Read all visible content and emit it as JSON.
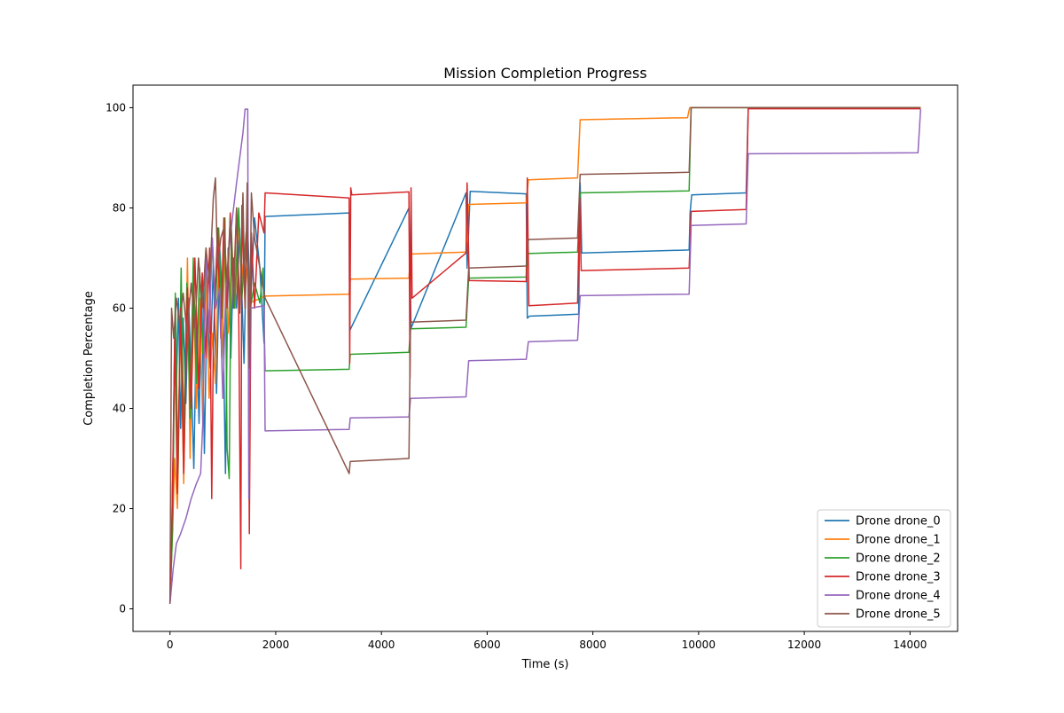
{
  "chart_data": {
    "type": "line",
    "title": "Mission Completion Progress",
    "xlabel": "Time (s)",
    "ylabel": "Completion Percentage",
    "xlim": [
      -700,
      14900
    ],
    "ylim": [
      -4.5,
      104.5
    ],
    "xticks": [
      0,
      2000,
      4000,
      6000,
      8000,
      10000,
      12000,
      14000
    ],
    "yticks": [
      0,
      20,
      40,
      60,
      80,
      100
    ],
    "grid": false,
    "legend_position": "lower-right",
    "series": [
      {
        "name": "Drone drone_0",
        "color": "#1f77b4",
        "points": [
          [
            0,
            1
          ],
          [
            30,
            14
          ],
          [
            60,
            31
          ],
          [
            90,
            56
          ],
          [
            120,
            44
          ],
          [
            160,
            62
          ],
          [
            200,
            36
          ],
          [
            250,
            58
          ],
          [
            300,
            41
          ],
          [
            350,
            62
          ],
          [
            400,
            47
          ],
          [
            450,
            28
          ],
          [
            500,
            57
          ],
          [
            550,
            37
          ],
          [
            600,
            64
          ],
          [
            650,
            31
          ],
          [
            700,
            62
          ],
          [
            760,
            48
          ],
          [
            820,
            69
          ],
          [
            880,
            43
          ],
          [
            940,
            72
          ],
          [
            1000,
            60
          ],
          [
            1050,
            27
          ],
          [
            1100,
            72
          ],
          [
            1150,
            50
          ],
          [
            1200,
            70
          ],
          [
            1260,
            60
          ],
          [
            1320,
            76
          ],
          [
            1400,
            49
          ],
          [
            1460,
            79
          ],
          [
            1520,
            60
          ],
          [
            1600,
            78
          ],
          [
            1700,
            68
          ],
          [
            1780,
            53
          ],
          [
            1800,
            78.3
          ],
          [
            3390,
            79
          ],
          [
            3400,
            55.5
          ],
          [
            4520,
            80
          ],
          [
            4560,
            56
          ],
          [
            5600,
            83
          ],
          [
            5620,
            68
          ],
          [
            5680,
            83.3
          ],
          [
            6740,
            82.8
          ],
          [
            6760,
            58
          ],
          [
            6800,
            58.4
          ],
          [
            7730,
            58.8
          ],
          [
            7760,
            85
          ],
          [
            7790,
            71
          ],
          [
            9820,
            71.6
          ],
          [
            9840,
            79
          ],
          [
            9870,
            82.6
          ],
          [
            10900,
            83
          ],
          [
            10940,
            100
          ],
          [
            14200,
            100
          ]
        ]
      },
      {
        "name": "Drone drone_1",
        "color": "#ff7f0e",
        "points": [
          [
            0,
            1
          ],
          [
            40,
            13
          ],
          [
            90,
            30
          ],
          [
            140,
            20
          ],
          [
            200,
            58
          ],
          [
            260,
            25
          ],
          [
            330,
            70
          ],
          [
            380,
            30
          ],
          [
            440,
            65
          ],
          [
            500,
            40
          ],
          [
            560,
            62
          ],
          [
            620,
            37
          ],
          [
            680,
            68
          ],
          [
            740,
            42
          ],
          [
            800,
            55
          ],
          [
            860,
            45
          ],
          [
            920,
            70
          ],
          [
            980,
            50
          ],
          [
            1040,
            74
          ],
          [
            1100,
            55
          ],
          [
            1160,
            69
          ],
          [
            1230,
            60
          ],
          [
            1300,
            77
          ],
          [
            1360,
            66
          ],
          [
            1420,
            72
          ],
          [
            1500,
            61
          ],
          [
            1800,
            62.4
          ],
          [
            3390,
            62.8
          ],
          [
            3410,
            65.8
          ],
          [
            4520,
            66
          ],
          [
            4550,
            70.8
          ],
          [
            5600,
            71.2
          ],
          [
            5650,
            80.7
          ],
          [
            6740,
            81
          ],
          [
            6780,
            85.6
          ],
          [
            7710,
            86
          ],
          [
            7760,
            97.6
          ],
          [
            9790,
            98
          ],
          [
            9830,
            100
          ],
          [
            14200,
            100
          ]
        ]
      },
      {
        "name": "Drone drone_2",
        "color": "#2ca02c",
        "points": [
          [
            0,
            1
          ],
          [
            50,
            16
          ],
          [
            100,
            63
          ],
          [
            150,
            27
          ],
          [
            210,
            68
          ],
          [
            260,
            34
          ],
          [
            320,
            65
          ],
          [
            380,
            38
          ],
          [
            440,
            70
          ],
          [
            500,
            45
          ],
          [
            560,
            68
          ],
          [
            620,
            51
          ],
          [
            680,
            72
          ],
          [
            740,
            55
          ],
          [
            800,
            74
          ],
          [
            860,
            60
          ],
          [
            920,
            76
          ],
          [
            980,
            58
          ],
          [
            1040,
            78
          ],
          [
            1080,
            32
          ],
          [
            1120,
            26
          ],
          [
            1160,
            76
          ],
          [
            1220,
            60
          ],
          [
            1300,
            80
          ],
          [
            1360,
            62
          ],
          [
            1440,
            75
          ],
          [
            1520,
            60
          ],
          [
            1600,
            65
          ],
          [
            1700,
            61
          ],
          [
            1760,
            68
          ],
          [
            1800,
            47.5
          ],
          [
            3390,
            47.8
          ],
          [
            3410,
            50.8
          ],
          [
            4520,
            51.2
          ],
          [
            4550,
            55.9
          ],
          [
            5600,
            56.2
          ],
          [
            5650,
            66
          ],
          [
            6740,
            66.2
          ],
          [
            6780,
            70.9
          ],
          [
            7710,
            71.2
          ],
          [
            7760,
            83
          ],
          [
            9820,
            83.4
          ],
          [
            9860,
            100
          ],
          [
            14200,
            100
          ]
        ]
      },
      {
        "name": "Drone drone_3",
        "color": "#d62728",
        "points": [
          [
            0,
            1
          ],
          [
            40,
            19
          ],
          [
            90,
            54
          ],
          [
            140,
            23
          ],
          [
            200,
            60
          ],
          [
            260,
            27
          ],
          [
            330,
            64
          ],
          [
            400,
            40
          ],
          [
            470,
            70
          ],
          [
            540,
            44
          ],
          [
            610,
            67
          ],
          [
            680,
            50
          ],
          [
            750,
            72
          ],
          [
            790,
            22
          ],
          [
            820,
            53
          ],
          [
            900,
            76
          ],
          [
            960,
            54
          ],
          [
            1020,
            78
          ],
          [
            1080,
            60
          ],
          [
            1140,
            79
          ],
          [
            1200,
            63
          ],
          [
            1260,
            80
          ],
          [
            1300,
            60
          ],
          [
            1340,
            8
          ],
          [
            1360,
            80.5
          ],
          [
            1420,
            60
          ],
          [
            1470,
            80
          ],
          [
            1500,
            15
          ],
          [
            1540,
            75
          ],
          [
            1600,
            60
          ],
          [
            1680,
            79
          ],
          [
            1780,
            75
          ],
          [
            1800,
            83
          ],
          [
            3390,
            82
          ],
          [
            3400,
            49
          ],
          [
            3420,
            84
          ],
          [
            3440,
            82.6
          ],
          [
            4520,
            83.2
          ],
          [
            4540,
            46
          ],
          [
            4560,
            84
          ],
          [
            4580,
            62
          ],
          [
            5600,
            71
          ],
          [
            5620,
            85
          ],
          [
            5660,
            65.5
          ],
          [
            6740,
            65.3
          ],
          [
            6760,
            86
          ],
          [
            6790,
            60.5
          ],
          [
            7710,
            61
          ],
          [
            7750,
            82
          ],
          [
            7780,
            67.5
          ],
          [
            9820,
            68
          ],
          [
            9860,
            79.3
          ],
          [
            10900,
            79.7
          ],
          [
            10940,
            99.8
          ],
          [
            14200,
            99.8
          ]
        ]
      },
      {
        "name": "Drone drone_4",
        "color": "#9467bd",
        "points": [
          [
            0,
            1
          ],
          [
            60,
            8
          ],
          [
            120,
            13
          ],
          [
            200,
            15
          ],
          [
            300,
            18
          ],
          [
            400,
            22
          ],
          [
            500,
            25
          ],
          [
            580,
            27
          ],
          [
            620,
            37
          ],
          [
            680,
            72
          ],
          [
            740,
            55
          ],
          [
            800,
            74
          ],
          [
            860,
            60
          ],
          [
            940,
            64
          ],
          [
            1000,
            42
          ],
          [
            1060,
            65
          ],
          [
            1120,
            72
          ],
          [
            1180,
            78
          ],
          [
            1260,
            85
          ],
          [
            1320,
            90
          ],
          [
            1380,
            95
          ],
          [
            1420,
            99.7
          ],
          [
            1470,
            99.7
          ],
          [
            1490,
            22
          ],
          [
            1520,
            60
          ],
          [
            1780,
            60.5
          ],
          [
            1800,
            35.5
          ],
          [
            3390,
            35.8
          ],
          [
            3410,
            38.1
          ],
          [
            4520,
            38.3
          ],
          [
            4550,
            42
          ],
          [
            5600,
            42.3
          ],
          [
            5650,
            49.5
          ],
          [
            6740,
            49.8
          ],
          [
            6780,
            53.3
          ],
          [
            7710,
            53.6
          ],
          [
            7760,
            62.5
          ],
          [
            9820,
            62.8
          ],
          [
            9860,
            76.5
          ],
          [
            10900,
            76.8
          ],
          [
            10940,
            90.8
          ],
          [
            14150,
            91
          ],
          [
            14200,
            99.7
          ]
        ]
      },
      {
        "name": "Drone drone_5",
        "color": "#8c564b",
        "points": [
          [
            0,
            1
          ],
          [
            30,
            60
          ],
          [
            70,
            54
          ],
          [
            120,
            62
          ],
          [
            180,
            57
          ],
          [
            250,
            63
          ],
          [
            320,
            55
          ],
          [
            400,
            65
          ],
          [
            470,
            56
          ],
          [
            540,
            70
          ],
          [
            610,
            60
          ],
          [
            680,
            72
          ],
          [
            750,
            65
          ],
          [
            820,
            82
          ],
          [
            860,
            86
          ],
          [
            900,
            68
          ],
          [
            960,
            74
          ],
          [
            1020,
            76
          ],
          [
            1080,
            65
          ],
          [
            1140,
            78
          ],
          [
            1200,
            60
          ],
          [
            1260,
            80
          ],
          [
            1320,
            59
          ],
          [
            1380,
            83
          ],
          [
            1420,
            60
          ],
          [
            1460,
            85
          ],
          [
            1500,
            48
          ],
          [
            1540,
            83
          ],
          [
            1600,
            74
          ],
          [
            1700,
            68
          ],
          [
            1800,
            62
          ],
          [
            3390,
            27
          ],
          [
            3410,
            29.4
          ],
          [
            4520,
            30
          ],
          [
            4550,
            57.2
          ],
          [
            5600,
            57.6
          ],
          [
            5650,
            68
          ],
          [
            6740,
            68.4
          ],
          [
            6780,
            73.7
          ],
          [
            7710,
            74
          ],
          [
            7760,
            86.7
          ],
          [
            9820,
            87.1
          ],
          [
            9860,
            100
          ],
          [
            14200,
            100
          ]
        ]
      }
    ]
  }
}
